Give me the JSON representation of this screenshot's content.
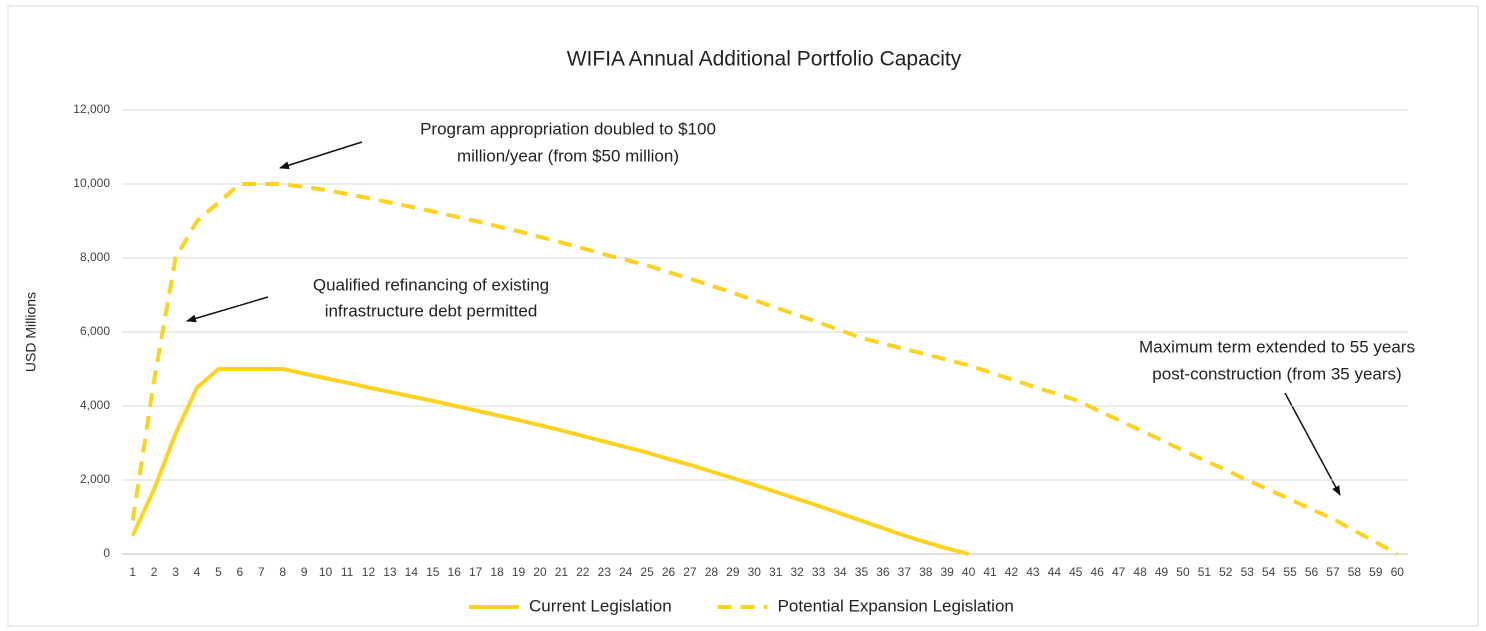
{
  "chart_data": {
    "type": "line",
    "title": "WIFIA Annual Additional Portfolio Capacity",
    "y_label": "USD Millions",
    "categories": [
      "1",
      "2",
      "3",
      "4",
      "5",
      "6",
      "7",
      "8",
      "9",
      "10",
      "11",
      "12",
      "13",
      "14",
      "15",
      "16",
      "17",
      "18",
      "19",
      "20",
      "21",
      "22",
      "23",
      "24",
      "25",
      "26",
      "27",
      "28",
      "29",
      "30",
      "31",
      "32",
      "33",
      "34",
      "35",
      "36",
      "37",
      "38",
      "39",
      "40",
      "41",
      "42",
      "43",
      "44",
      "45",
      "46",
      "47",
      "48",
      "49",
      "50",
      "51",
      "52",
      "53",
      "54",
      "55",
      "56",
      "57",
      "58",
      "59",
      "60"
    ],
    "series": [
      {
        "name": "Current Legislation",
        "color": "#ffd21f",
        "dash": false,
        "values": [
          500,
          1750,
          3250,
          4500,
          5000,
          5000,
          5000,
          5000,
          4875,
          4750,
          4630,
          4500,
          4380,
          4260,
          4140,
          4010,
          3880,
          3750,
          3620,
          3480,
          3340,
          3190,
          3040,
          2890,
          2740,
          2570,
          2410,
          2230,
          2050,
          1870,
          1680,
          1490,
          1300,
          1100,
          900,
          700,
          500,
          320,
          150,
          0,
          null,
          null,
          null,
          null,
          null,
          null,
          null,
          null,
          null,
          null,
          null,
          null,
          null,
          null,
          null,
          null,
          null,
          null,
          null,
          null
        ]
      },
      {
        "name": "Potential Expansion Legislation",
        "color": "#ffd21f",
        "dash": true,
        "values": [
          900,
          4700,
          8000,
          9000,
          9500,
          10000,
          10000,
          10000,
          9920,
          9840,
          9730,
          9620,
          9500,
          9380,
          9260,
          9130,
          9000,
          8860,
          8720,
          8570,
          8420,
          8260,
          8100,
          7950,
          7800,
          7620,
          7440,
          7250,
          7060,
          6860,
          6660,
          6460,
          6260,
          6050,
          5840,
          5690,
          5540,
          5400,
          5250,
          5100,
          4910,
          4720,
          4530,
          4350,
          4160,
          3890,
          3620,
          3350,
          3080,
          2800,
          2530,
          2270,
          2000,
          1740,
          1480,
          1210,
          950,
          630,
          320,
          0
        ]
      }
    ],
    "ylim": [
      0,
      12000
    ],
    "yticks": [
      0,
      {
        "value": 2000,
        "label": "2,000"
      },
      {
        "value": 4000,
        "label": "4,000"
      },
      {
        "value": 6000,
        "label": "6,000"
      },
      {
        "value": 8000,
        "label": "8,000"
      },
      {
        "value": 10000,
        "label": "10,000"
      },
      {
        "value": 12000,
        "label": "12,000"
      }
    ],
    "grid": true,
    "legend": "bottom",
    "annotations": [
      {
        "lines": [
          "Program appropriation doubled to $100",
          "million/year (from $50 million)"
        ]
      },
      {
        "lines": [
          "Qualified refinancing of existing",
          "infrastructure debt permitted"
        ]
      },
      {
        "lines": [
          "Maximum term extended to 55 years",
          "post-construction (from 35 years)"
        ]
      }
    ]
  }
}
